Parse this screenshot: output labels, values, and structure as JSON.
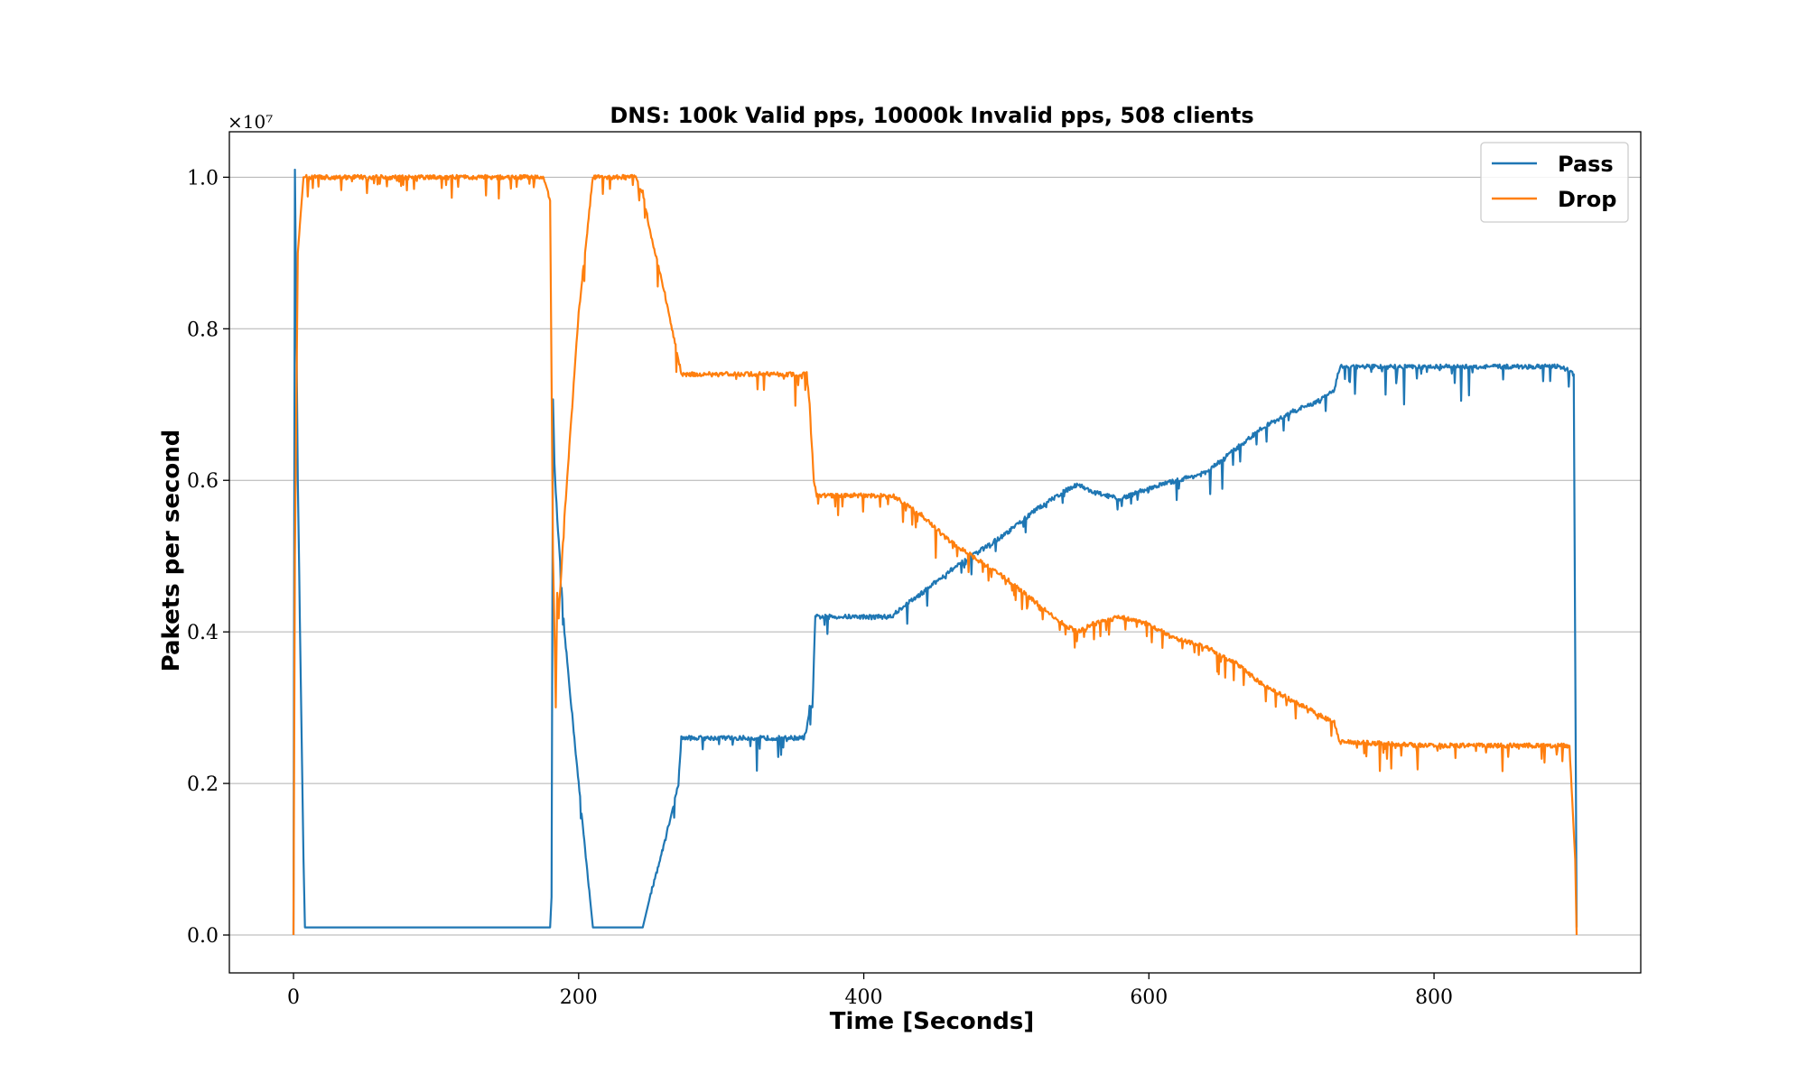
{
  "chart_data": {
    "type": "line",
    "title": "DNS: 100k Valid pps, 10000k Invalid pps, 508 clients",
    "xlabel": "Time [Seconds]",
    "ylabel": "Pakets per second",
    "xlim": [
      -45,
      945
    ],
    "ylim": [
      -0.05,
      1.06
    ],
    "y_scale_label": "×10⁷",
    "x_ticks": [
      0,
      200,
      400,
      600,
      800
    ],
    "x_tick_labels": [
      "0",
      "200",
      "400",
      "600",
      "800"
    ],
    "y_ticks": [
      0.0,
      0.2,
      0.4,
      0.6,
      0.8,
      1.0
    ],
    "y_tick_labels": [
      "0.0",
      "0.2",
      "0.4",
      "0.6",
      "0.8",
      "1.0"
    ],
    "grid": "horizontal",
    "legend_position": "top-right",
    "series": [
      {
        "name": "Pass",
        "color": "#1f77b4",
        "noise": "downward",
        "x": [
          0,
          1,
          3,
          7,
          8,
          9,
          180,
          181,
          182,
          183,
          185,
          190,
          200,
          210,
          212,
          245,
          250,
          260,
          270,
          272,
          290,
          330,
          355,
          358,
          360,
          362,
          364,
          366,
          368,
          380,
          420,
          425,
          440,
          460,
          480,
          500,
          520,
          540,
          550,
          560,
          580,
          600,
          620,
          640,
          660,
          680,
          700,
          720,
          730,
          734,
          800,
          850,
          890,
          898,
          900
        ],
        "y": [
          0.0,
          1.01,
          0.6,
          0.1,
          0.01,
          0.01,
          0.01,
          0.05,
          0.71,
          0.62,
          0.55,
          0.4,
          0.2,
          0.01,
          0.01,
          0.01,
          0.05,
          0.12,
          0.2,
          0.26,
          0.26,
          0.26,
          0.26,
          0.26,
          0.27,
          0.3,
          0.3,
          0.42,
          0.42,
          0.42,
          0.42,
          0.43,
          0.45,
          0.48,
          0.505,
          0.53,
          0.56,
          0.585,
          0.595,
          0.585,
          0.575,
          0.59,
          0.6,
          0.61,
          0.64,
          0.67,
          0.69,
          0.705,
          0.72,
          0.75,
          0.75,
          0.75,
          0.75,
          0.74,
          0.01
        ]
      },
      {
        "name": "Drop",
        "color": "#ff7f0e",
        "noise": "downward",
        "x": [
          0,
          1,
          3,
          7,
          10,
          100,
          175,
          180,
          182,
          184,
          185,
          186,
          190,
          200,
          210,
          240,
          245,
          250,
          260,
          270,
          272,
          360,
          362,
          365,
          367,
          420,
          440,
          460,
          480,
          500,
          520,
          540,
          550,
          560,
          580,
          600,
          620,
          640,
          660,
          680,
          700,
          720,
          730,
          734,
          800,
          850,
          895,
          899,
          900
        ],
        "y": [
          0.0,
          0.5,
          0.9,
          1.0,
          1.0,
          1.0,
          1.0,
          0.97,
          0.5,
          0.3,
          0.45,
          0.42,
          0.55,
          0.82,
          1.0,
          1.0,
          0.98,
          0.93,
          0.85,
          0.76,
          0.74,
          0.74,
          0.7,
          0.6,
          0.58,
          0.58,
          0.555,
          0.52,
          0.495,
          0.47,
          0.44,
          0.41,
          0.4,
          0.41,
          0.42,
          0.41,
          0.39,
          0.38,
          0.36,
          0.33,
          0.31,
          0.29,
          0.28,
          0.255,
          0.25,
          0.25,
          0.25,
          0.1,
          0.0
        ]
      }
    ]
  }
}
